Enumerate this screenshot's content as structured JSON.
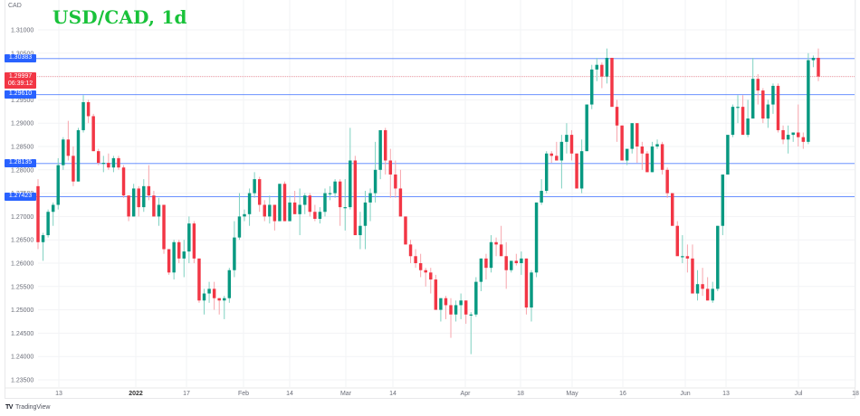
{
  "header": {
    "currency": "CAD",
    "title": "USD/CAD, 1d"
  },
  "footer": {
    "logo_glyph": "TV",
    "brand": "TradingView"
  },
  "colors": {
    "up": "#089981",
    "down": "#f23645",
    "up_wick": "#7fd1c1",
    "down_wick": "#f7a5ac",
    "hline": "#2962ff",
    "current_line": "#f23645",
    "grid": "#f2f3f5",
    "title": "#19c23a"
  },
  "price_tags": [
    {
      "label": "1.30383",
      "value": 1.30383,
      "color": "blue"
    },
    {
      "label": "1.29610",
      "value": 1.2961,
      "color": "blue"
    },
    {
      "label": "1.28135",
      "value": 1.28135,
      "color": "blue"
    },
    {
      "label": "1.27423",
      "value": 1.27423,
      "color": "blue"
    }
  ],
  "current_price": {
    "label": "1.29997",
    "countdown": "06:39:12",
    "value": 1.29997
  },
  "chart_data": {
    "type": "candlestick",
    "title": "USD/CAD, 1d",
    "xlabel": "",
    "ylabel": "CAD",
    "ylim": [
      1.2325,
      1.3125
    ],
    "y_ticks": [
      1.31,
      1.305,
      1.3,
      1.295,
      1.29,
      1.285,
      1.28,
      1.275,
      1.27,
      1.265,
      1.26,
      1.255,
      1.25,
      1.245,
      1.24,
      1.235
    ],
    "y_tick_labels": [
      "1.31000",
      "1.30500",
      "1.30000",
      "1.29500",
      "1.29000",
      "1.28500",
      "1.28000",
      "1.27500",
      "1.27000",
      "1.26500",
      "1.26000",
      "1.25500",
      "1.25000",
      "1.24500",
      "1.24000",
      "1.23500"
    ],
    "x_ticks": [
      {
        "label": "13",
        "x": 65,
        "bold": false
      },
      {
        "label": "2022",
        "x": 150,
        "bold": true
      },
      {
        "label": "17",
        "x": 206,
        "bold": false
      },
      {
        "label": "Feb",
        "x": 269,
        "bold": false
      },
      {
        "label": "14",
        "x": 320,
        "bold": false
      },
      {
        "label": "Mar",
        "x": 382,
        "bold": false
      },
      {
        "label": "14",
        "x": 434,
        "bold": false
      },
      {
        "label": "Apr",
        "x": 514,
        "bold": false
      },
      {
        "label": "18",
        "x": 575,
        "bold": false
      },
      {
        "label": "May",
        "x": 632,
        "bold": false
      },
      {
        "label": "16",
        "x": 688,
        "bold": false
      },
      {
        "label": "Jun",
        "x": 757,
        "bold": false
      },
      {
        "label": "13",
        "x": 802,
        "bold": false
      },
      {
        "label": "Jul",
        "x": 882,
        "bold": false
      },
      {
        "label": "18",
        "x": 945,
        "bold": false
      }
    ],
    "horizontal_lines": [
      1.30383,
      1.2961,
      1.28135,
      1.27423
    ],
    "current_price": 1.29997,
    "candles": [
      [
        1.2765,
        1.278,
        1.263,
        1.2645
      ],
      [
        1.2645,
        1.2665,
        1.2605,
        1.266
      ],
      [
        1.266,
        1.2715,
        1.2655,
        1.271
      ],
      [
        1.271,
        1.273,
        1.268,
        1.2725
      ],
      [
        1.2725,
        1.2825,
        1.2715,
        1.281
      ],
      [
        1.281,
        1.287,
        1.28,
        1.2865
      ],
      [
        1.2865,
        1.2905,
        1.282,
        1.283
      ],
      [
        1.283,
        1.285,
        1.2765,
        1.2775
      ],
      [
        1.2775,
        1.289,
        1.2775,
        1.2885
      ],
      [
        1.2885,
        1.296,
        1.288,
        1.2945
      ],
      [
        1.2945,
        1.295,
        1.29,
        1.2915
      ],
      [
        1.2915,
        1.292,
        1.284,
        1.284
      ],
      [
        1.284,
        1.2845,
        1.281,
        1.2815
      ],
      [
        1.2815,
        1.283,
        1.2795,
        1.2815
      ],
      [
        1.2815,
        1.2835,
        1.28,
        1.2805
      ],
      [
        1.2805,
        1.283,
        1.2795,
        1.2825
      ],
      [
        1.2825,
        1.283,
        1.28,
        1.2805
      ],
      [
        1.2805,
        1.281,
        1.274,
        1.2745
      ],
      [
        1.2745,
        1.2745,
        1.269,
        1.27
      ],
      [
        1.27,
        1.277,
        1.27,
        1.276
      ],
      [
        1.276,
        1.2765,
        1.27,
        1.272
      ],
      [
        1.272,
        1.278,
        1.271,
        1.2765
      ],
      [
        1.2765,
        1.281,
        1.2735,
        1.2745
      ],
      [
        1.2745,
        1.2755,
        1.27,
        1.27
      ],
      [
        1.27,
        1.274,
        1.268,
        1.2725
      ],
      [
        1.2725,
        1.2725,
        1.262,
        1.263
      ],
      [
        1.263,
        1.263,
        1.2575,
        1.258
      ],
      [
        1.258,
        1.265,
        1.2565,
        1.2645
      ],
      [
        1.2645,
        1.265,
        1.26,
        1.261
      ],
      [
        1.261,
        1.265,
        1.257,
        1.2625
      ],
      [
        1.2625,
        1.27,
        1.26,
        1.2685
      ],
      [
        1.2685,
        1.269,
        1.26,
        1.261
      ],
      [
        1.261,
        1.261,
        1.2515,
        1.252
      ],
      [
        1.252,
        1.2545,
        1.249,
        1.2535
      ],
      [
        1.2535,
        1.256,
        1.2515,
        1.2545
      ],
      [
        1.2545,
        1.256,
        1.25,
        1.2525
      ],
      [
        1.2525,
        1.2525,
        1.249,
        1.252
      ],
      [
        1.252,
        1.253,
        1.248,
        1.2525
      ],
      [
        1.2525,
        1.259,
        1.2515,
        1.2585
      ],
      [
        1.2585,
        1.269,
        1.257,
        1.2655
      ],
      [
        1.2655,
        1.275,
        1.265,
        1.27
      ],
      [
        1.27,
        1.2715,
        1.269,
        1.2705
      ],
      [
        1.2705,
        1.276,
        1.268,
        1.275
      ],
      [
        1.275,
        1.2795,
        1.274,
        1.278
      ],
      [
        1.278,
        1.2785,
        1.271,
        1.2725
      ],
      [
        1.2725,
        1.2735,
        1.269,
        1.27
      ],
      [
        1.27,
        1.2745,
        1.2685,
        1.2725
      ],
      [
        1.2725,
        1.2725,
        1.267,
        1.269
      ],
      [
        1.269,
        1.277,
        1.269,
        1.277
      ],
      [
        1.277,
        1.2775,
        1.269,
        1.269
      ],
      [
        1.269,
        1.2745,
        1.269,
        1.273
      ],
      [
        1.273,
        1.2755,
        1.272,
        1.2705
      ],
      [
        1.2705,
        1.276,
        1.266,
        1.2725
      ],
      [
        1.2725,
        1.275,
        1.2705,
        1.2745
      ],
      [
        1.2745,
        1.275,
        1.27,
        1.271
      ],
      [
        1.271,
        1.2725,
        1.269,
        1.2695
      ],
      [
        1.2695,
        1.272,
        1.2685,
        1.271
      ],
      [
        1.271,
        1.276,
        1.27,
        1.275
      ],
      [
        1.275,
        1.2765,
        1.2735,
        1.275
      ],
      [
        1.275,
        1.278,
        1.274,
        1.2775
      ],
      [
        1.2775,
        1.278,
        1.268,
        1.272
      ],
      [
        1.272,
        1.278,
        1.267,
        1.272
      ],
      [
        1.272,
        1.289,
        1.2715,
        1.282
      ],
      [
        1.282,
        1.283,
        1.268,
        1.266
      ],
      [
        1.266,
        1.271,
        1.263,
        1.268
      ],
      [
        1.268,
        1.2755,
        1.263,
        1.273
      ],
      [
        1.273,
        1.276,
        1.269,
        1.275
      ],
      [
        1.275,
        1.286,
        1.273,
        1.28
      ],
      [
        1.28,
        1.288,
        1.278,
        1.2885
      ],
      [
        1.2885,
        1.289,
        1.279,
        1.282
      ],
      [
        1.282,
        1.2845,
        1.274,
        1.279
      ],
      [
        1.279,
        1.282,
        1.274,
        1.276
      ],
      [
        1.276,
        1.28,
        1.27,
        1.27
      ],
      [
        1.27,
        1.27,
        1.264,
        1.264
      ],
      [
        1.264,
        1.265,
        1.26,
        1.2615
      ],
      [
        1.2615,
        1.263,
        1.259,
        1.26
      ],
      [
        1.26,
        1.262,
        1.257,
        1.2585
      ],
      [
        1.2585,
        1.259,
        1.255,
        1.258
      ],
      [
        1.258,
        1.259,
        1.2535,
        1.2565
      ],
      [
        1.2565,
        1.2575,
        1.25,
        1.25
      ],
      [
        1.25,
        1.2525,
        1.2475,
        1.2525
      ],
      [
        1.2525,
        1.253,
        1.248,
        1.251
      ],
      [
        1.251,
        1.2525,
        1.244,
        1.249
      ],
      [
        1.249,
        1.252,
        1.2475,
        1.251
      ],
      [
        1.251,
        1.2535,
        1.248,
        1.252
      ],
      [
        1.252,
        1.252,
        1.247,
        1.249
      ],
      [
        1.249,
        1.2495,
        1.2405,
        1.249
      ],
      [
        1.249,
        1.257,
        1.2485,
        1.256
      ],
      [
        1.256,
        1.261,
        1.254,
        1.261
      ],
      [
        1.261,
        1.262,
        1.2565,
        1.259
      ],
      [
        1.259,
        1.266,
        1.258,
        1.2645
      ],
      [
        1.2645,
        1.2655,
        1.2615,
        1.264
      ],
      [
        1.264,
        1.268,
        1.262,
        1.2615
      ],
      [
        1.2615,
        1.2645,
        1.2545,
        1.2585
      ],
      [
        1.2585,
        1.2605,
        1.258,
        1.2605
      ],
      [
        1.2605,
        1.262,
        1.2595,
        1.26
      ],
      [
        1.26,
        1.2625,
        1.2575,
        1.261
      ],
      [
        1.261,
        1.261,
        1.249,
        1.2505
      ],
      [
        1.2505,
        1.2585,
        1.2475,
        1.258
      ],
      [
        1.258,
        1.273,
        1.257,
        1.273
      ],
      [
        1.273,
        1.278,
        1.2725,
        1.2755
      ],
      [
        1.2755,
        1.284,
        1.275,
        1.2835
      ],
      [
        1.2835,
        1.284,
        1.2815,
        1.283
      ],
      [
        1.283,
        1.286,
        1.282,
        1.282
      ],
      [
        1.282,
        1.2875,
        1.276,
        1.286
      ],
      [
        1.286,
        1.29,
        1.2835,
        1.2875
      ],
      [
        1.2875,
        1.2885,
        1.282,
        1.2835
      ],
      [
        1.2835,
        1.2835,
        1.276,
        1.276
      ],
      [
        1.276,
        1.2865,
        1.275,
        1.284
      ],
      [
        1.284,
        1.294,
        1.284,
        1.294
      ],
      [
        1.294,
        1.3025,
        1.293,
        1.3015
      ],
      [
        1.3015,
        1.304,
        1.299,
        1.3025
      ],
      [
        1.3025,
        1.303,
        1.2975,
        1.3
      ],
      [
        1.3,
        1.306,
        1.2985,
        1.304
      ],
      [
        1.304,
        1.304,
        1.2935,
        1.2935
      ],
      [
        1.2935,
        1.295,
        1.286,
        1.2895
      ],
      [
        1.2895,
        1.2895,
        1.2825,
        1.282
      ],
      [
        1.282,
        1.2835,
        1.281,
        1.2845
      ],
      [
        1.2845,
        1.29,
        1.2835,
        1.29
      ],
      [
        1.29,
        1.29,
        1.2815,
        1.285
      ],
      [
        1.285,
        1.286,
        1.28,
        1.2835
      ],
      [
        1.2835,
        1.284,
        1.2795,
        1.2795
      ],
      [
        1.2795,
        1.286,
        1.2795,
        1.285
      ],
      [
        1.285,
        1.2865,
        1.2845,
        1.2855
      ],
      [
        1.2855,
        1.286,
        1.279,
        1.28
      ],
      [
        1.28,
        1.2805,
        1.274,
        1.275
      ],
      [
        1.275,
        1.275,
        1.268,
        1.268
      ],
      [
        1.268,
        1.269,
        1.264,
        1.2615
      ],
      [
        1.2615,
        1.266,
        1.26,
        1.2615
      ],
      [
        1.2615,
        1.264,
        1.258,
        1.261
      ],
      [
        1.261,
        1.264,
        1.254,
        1.2535
      ],
      [
        1.2535,
        1.2585,
        1.252,
        1.2555
      ],
      [
        1.2555,
        1.259,
        1.253,
        1.2545
      ],
      [
        1.2545,
        1.257,
        1.252,
        1.252
      ],
      [
        1.252,
        1.256,
        1.2515,
        1.2545
      ],
      [
        1.2545,
        1.268,
        1.254,
        1.268
      ],
      [
        1.268,
        1.278,
        1.266,
        1.279
      ],
      [
        1.279,
        1.287,
        1.279,
        1.2875
      ],
      [
        1.2875,
        1.294,
        1.287,
        1.2935
      ],
      [
        1.2935,
        1.296,
        1.29,
        1.2935
      ],
      [
        1.2935,
        1.296,
        1.289,
        1.2875
      ],
      [
        1.2875,
        1.295,
        1.287,
        1.291
      ],
      [
        1.291,
        1.304,
        1.291,
        1.2995
      ],
      [
        1.2995,
        1.3005,
        1.294,
        1.297
      ],
      [
        1.297,
        1.2975,
        1.29,
        1.291
      ],
      [
        1.291,
        1.295,
        1.289,
        1.294
      ],
      [
        1.294,
        1.2985,
        1.292,
        1.298
      ],
      [
        1.298,
        1.2985,
        1.288,
        1.2885
      ],
      [
        1.2885,
        1.2895,
        1.2855,
        1.2865
      ],
      [
        1.2865,
        1.2895,
        1.2835,
        1.2875
      ],
      [
        1.2875,
        1.288,
        1.286,
        1.288
      ],
      [
        1.288,
        1.294,
        1.285,
        1.287
      ],
      [
        1.287,
        1.288,
        1.2845,
        1.286
      ],
      [
        1.286,
        1.305,
        1.2855,
        1.3035
      ],
      [
        1.3035,
        1.3045,
        1.302,
        1.304
      ],
      [
        1.304,
        1.306,
        1.299,
        1.3
      ]
    ]
  }
}
